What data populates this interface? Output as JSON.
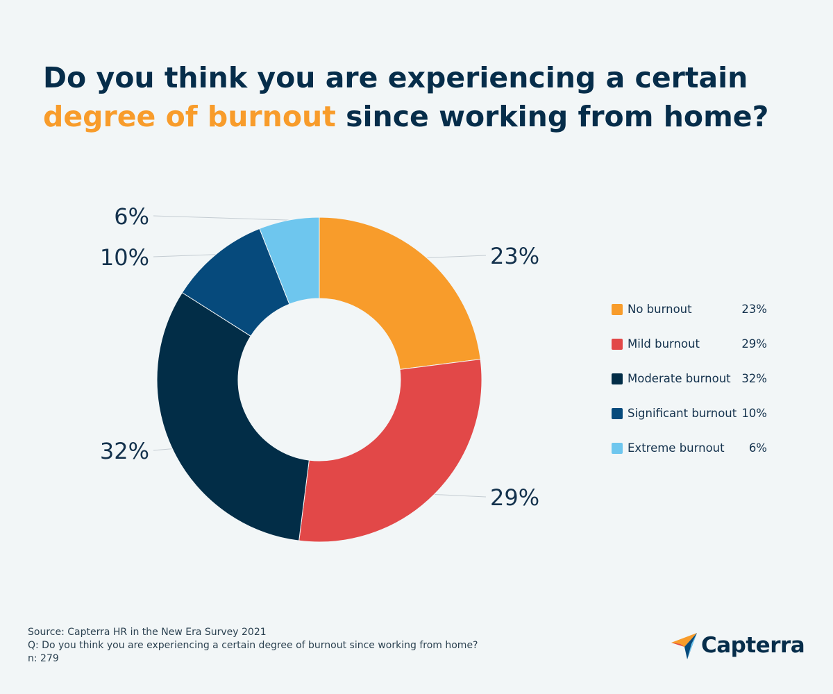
{
  "title": {
    "line1": "Do you think you are experiencing a certain",
    "highlight": "degree of burnout",
    "rest": " since working from home?"
  },
  "colors": {
    "background": "#f2f6f7",
    "title": "#062d4a",
    "highlight": "#f89c2b"
  },
  "chart_data": {
    "type": "pie",
    "variant": "donut",
    "categories": [
      "No burnout",
      "Mild burnout",
      "Moderate burnout",
      "Significant burnout",
      "Extreme burnout"
    ],
    "values": [
      23,
      29,
      32,
      10,
      6
    ],
    "labels": [
      "23%",
      "29%",
      "32%",
      "10%",
      "6%"
    ],
    "colors": [
      "#f89c2b",
      "#e24848",
      "#022d47",
      "#064a7c",
      "#6ec6ee"
    ],
    "start": "12 o'clock",
    "direction": "clockwise",
    "legend": "right"
  },
  "legend": [
    {
      "label": "No burnout",
      "value": "23%",
      "color": "#f89c2b"
    },
    {
      "label": "Mild burnout",
      "value": "29%",
      "color": "#e24848"
    },
    {
      "label": "Moderate burnout",
      "value": "32%",
      "color": "#022d47"
    },
    {
      "label": "Significant burnout",
      "value": "10%",
      "color": "#064a7c"
    },
    {
      "label": "Extreme burnout",
      "value": "6%",
      "color": "#6ec6ee"
    }
  ],
  "footer": {
    "source": "Source: Capterra HR in the New Era Survey 2021",
    "question": "Q: Do you think you are experiencing a certain degree of burnout since working from home?",
    "n": "n: 279"
  },
  "brand": {
    "name": "Capterra",
    "logo_icon": "capterra-arrow-icon"
  }
}
